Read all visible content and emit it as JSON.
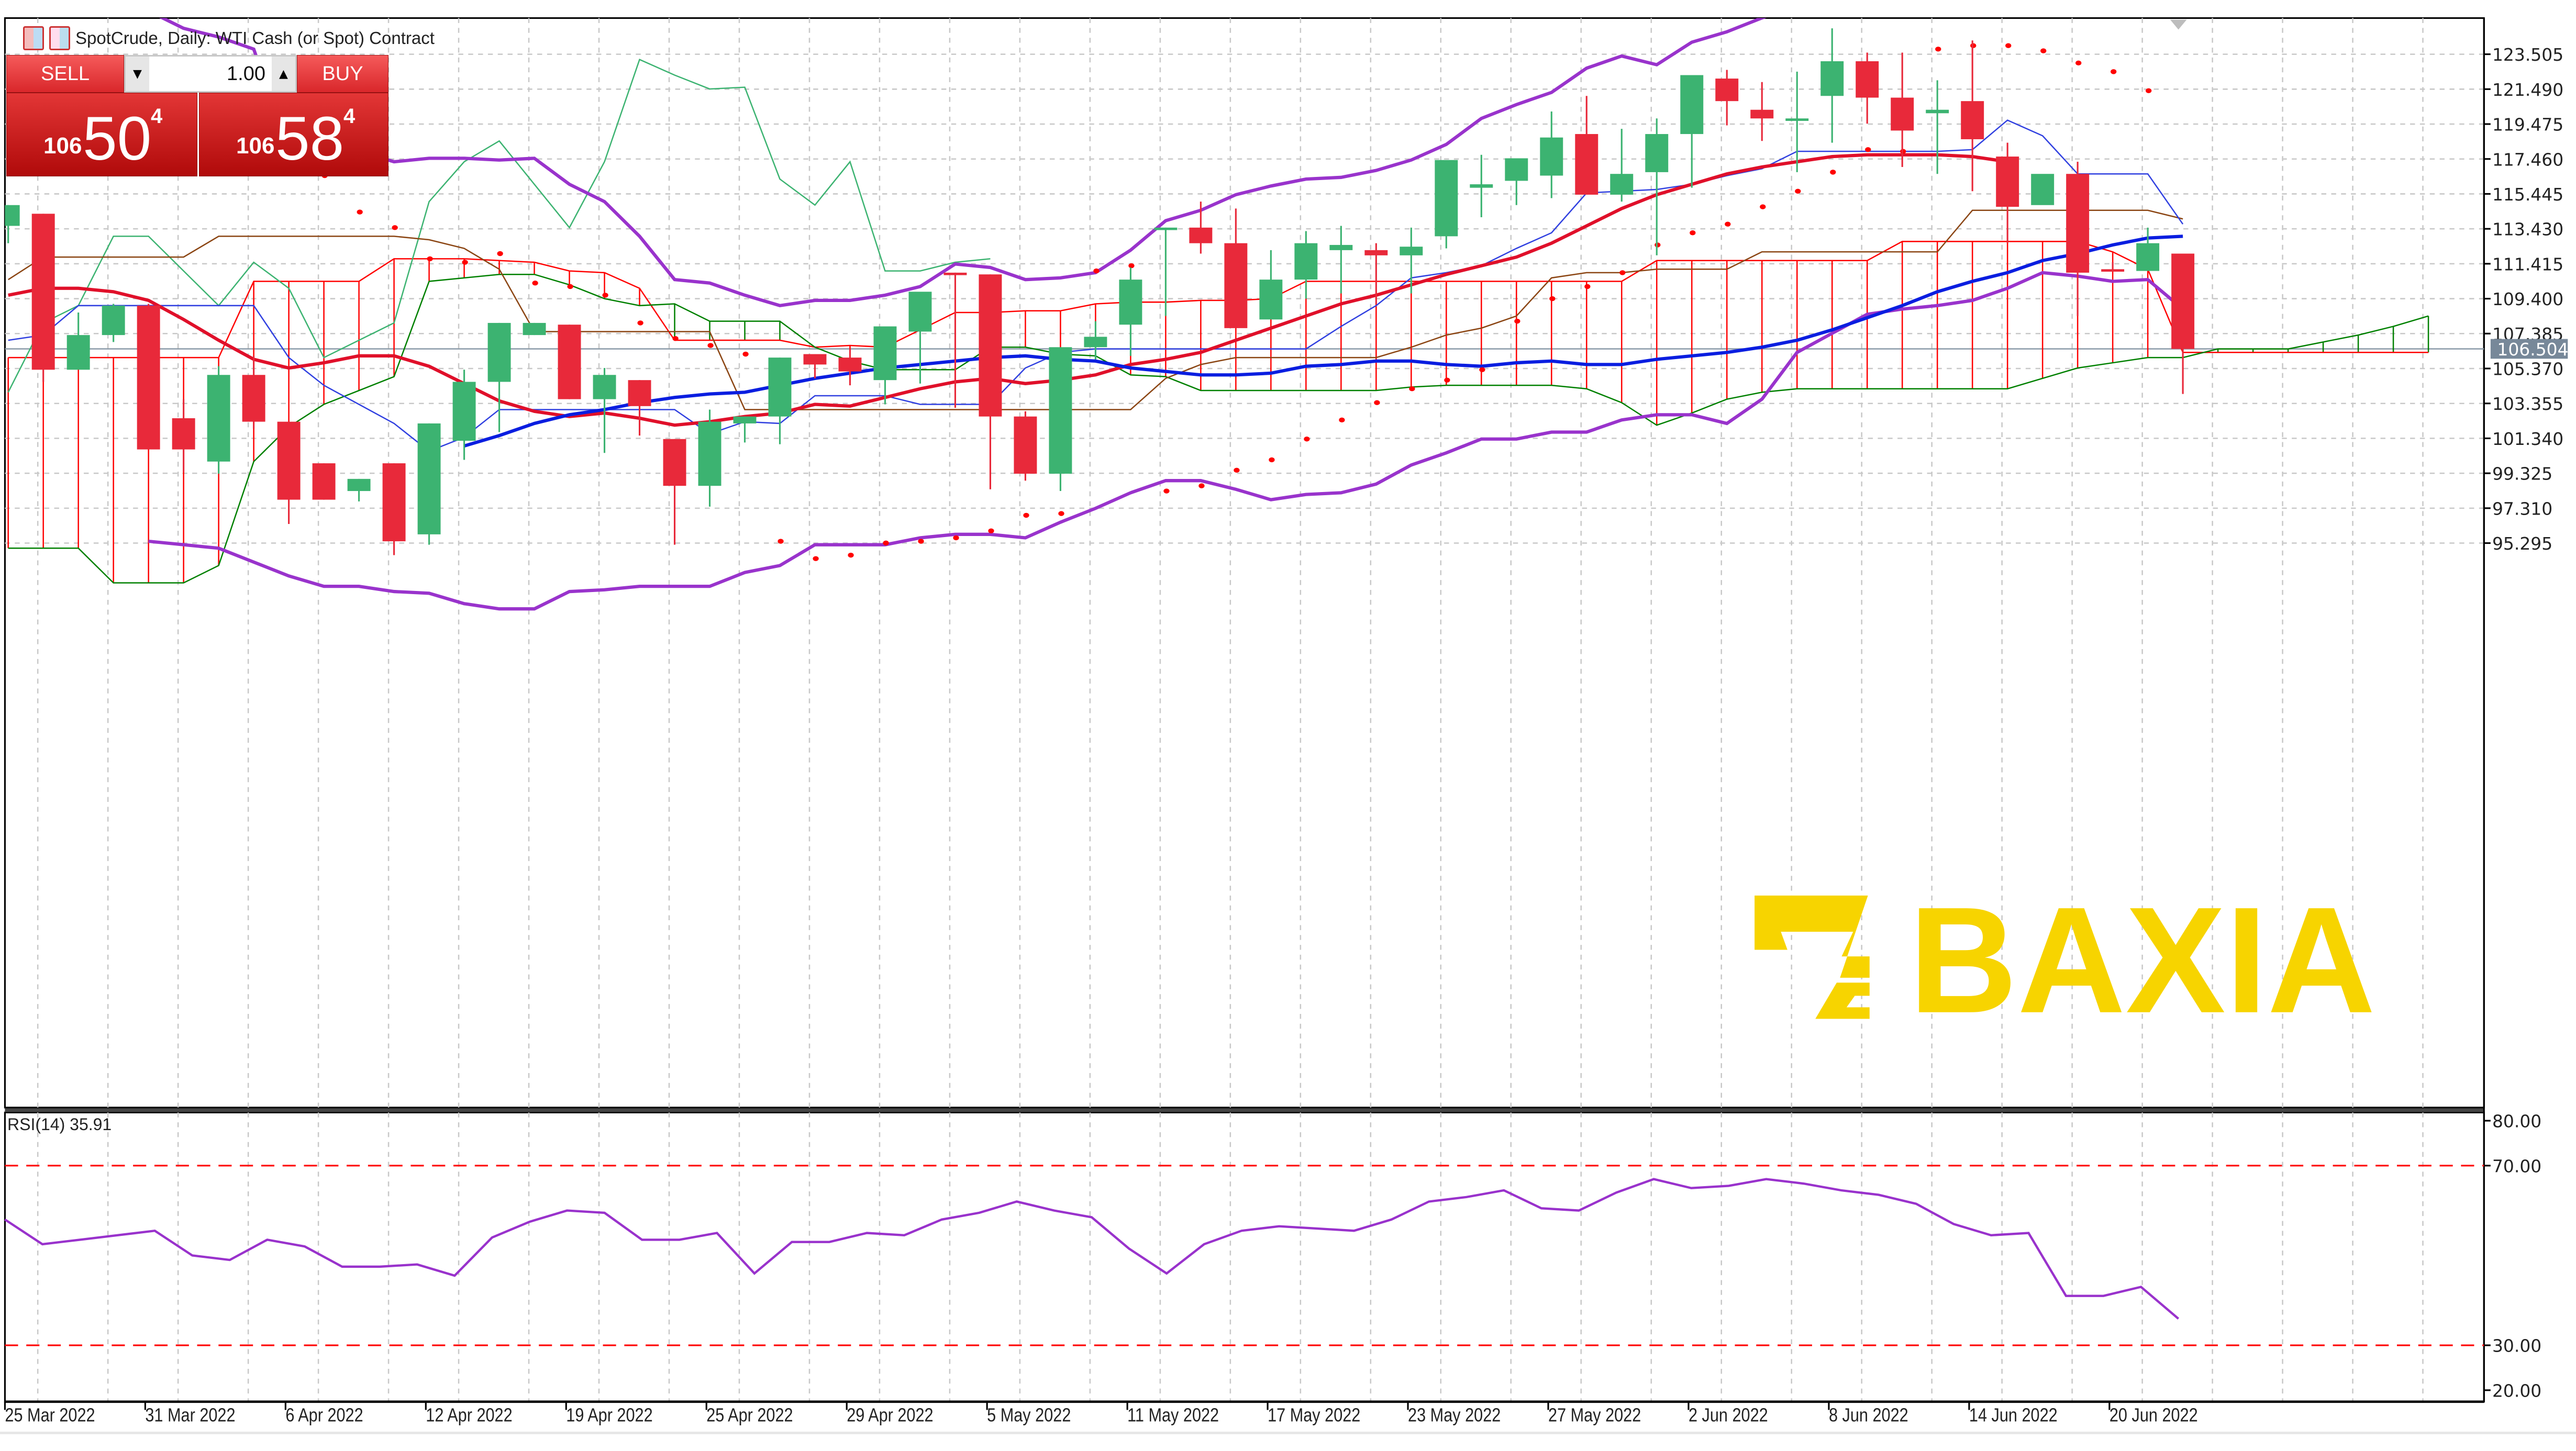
{
  "window": {
    "symbol": "SpotCrude",
    "timeframe": "Daily",
    "title": "SpotCrude, Daily:  WTI Cash (or Spot) Contract",
    "icons": [
      "market-depth-icon",
      "one-click-trading-icon"
    ]
  },
  "trade_panel": {
    "sell_label": "SELL",
    "buy_label": "BUY",
    "lot_value": "1.00",
    "lot_down_icon": "▼",
    "lot_up_icon": "▲",
    "sell_price": {
      "prefix": "106",
      "big": "50",
      "sup": "4",
      "full": "106.504"
    },
    "buy_price": {
      "prefix": "106",
      "big": "58",
      "sup": "4",
      "full": "106.584"
    }
  },
  "watermark": {
    "text": "BAXIA",
    "color": "#F7D400"
  },
  "colors": {
    "bull": "#3CB371",
    "bear": "#E8293A",
    "ma_red": "#E0102A",
    "ma_blue": "#0A1EE0",
    "bollinger": "#9933CC",
    "psar": "#FF0000",
    "ichimoku_cloud_up": "#008000",
    "ichimoku_cloud_down": "#FF0000",
    "tenkan": "#3040E0",
    "kijun": "#8B4513",
    "chikou": "#3CB371",
    "rsi_line": "#9932CC",
    "rsi_levels": "#FF0000",
    "current_price_bg": "#778899"
  },
  "chart_data": [
    {
      "type": "candlestick",
      "title": "SpotCrude, Daily:  WTI Cash (or Spot) Contract",
      "xlabel": "",
      "ylabel": "Price",
      "ylim": [
        93.3,
        126.1
      ],
      "grid": true,
      "current_price": 106.504,
      "y_ticks": [
        "123.505",
        "121.490",
        "119.475",
        "117.460",
        "115.445",
        "113.430",
        "111.415",
        "109.400",
        "107.385",
        "105.370",
        "103.355",
        "101.340",
        "99.325",
        "97.310",
        "95.295"
      ],
      "x_ticks": [
        "25 Mar 2022",
        "31 Mar 2022",
        "6 Apr 2022",
        "12 Apr 2022",
        "19 Apr 2022",
        "25 Apr 2022",
        "29 Apr 2022",
        "5 May 2022",
        "11 May 2022",
        "17 May 2022",
        "23 May 2022",
        "27 May 2022",
        "2 Jun 2022",
        "8 Jun 2022",
        "14 Jun 2022",
        "20 Jun 2022"
      ],
      "candles": [
        {
          "o": 113.6,
          "h": 114.8,
          "l": 112.6,
          "c": 114.8
        },
        {
          "o": 114.3,
          "h": 114.3,
          "l": 104.6,
          "c": 105.3
        },
        {
          "o": 105.3,
          "h": 108.6,
          "l": 105.3,
          "c": 107.3
        },
        {
          "o": 107.3,
          "h": 109.1,
          "l": 106.9,
          "c": 109.0
        },
        {
          "o": 109.0,
          "h": 109.1,
          "l": 100.7,
          "c": 100.7
        },
        {
          "o": 102.5,
          "h": 103.6,
          "l": 99.4,
          "c": 100.7
        },
        {
          "o": 100.0,
          "h": 105.5,
          "l": 99.3,
          "c": 105.0
        },
        {
          "o": 105.0,
          "h": 106.1,
          "l": 101.9,
          "c": 102.3
        },
        {
          "o": 102.3,
          "h": 102.3,
          "l": 96.4,
          "c": 97.8
        },
        {
          "o": 99.9,
          "h": 99.9,
          "l": 97.8,
          "c": 97.8
        },
        {
          "o": 98.3,
          "h": 99.0,
          "l": 97.7,
          "c": 99.0
        },
        {
          "o": 99.9,
          "h": 99.9,
          "l": 94.6,
          "c": 95.4
        },
        {
          "o": 95.8,
          "h": 102.2,
          "l": 95.2,
          "c": 102.2
        },
        {
          "o": 101.2,
          "h": 105.3,
          "l": 100.1,
          "c": 104.6
        },
        {
          "o": 104.6,
          "h": 108.0,
          "l": 101.7,
          "c": 108.0
        },
        {
          "o": 107.3,
          "h": 108.0,
          "l": 107.3,
          "c": 108.0
        },
        {
          "o": 107.9,
          "h": 107.9,
          "l": 103.6,
          "c": 103.6
        },
        {
          "o": 103.6,
          "h": 105.4,
          "l": 100.5,
          "c": 105.0
        },
        {
          "o": 104.7,
          "h": 104.7,
          "l": 101.5,
          "c": 103.2
        },
        {
          "o": 101.3,
          "h": 101.3,
          "l": 95.2,
          "c": 98.6
        },
        {
          "o": 98.6,
          "h": 103.0,
          "l": 97.4,
          "c": 102.3
        },
        {
          "o": 102.2,
          "h": 102.6,
          "l": 101.1,
          "c": 102.6
        },
        {
          "o": 102.6,
          "h": 106.0,
          "l": 101.0,
          "c": 106.0
        },
        {
          "o": 106.2,
          "h": 106.2,
          "l": 104.8,
          "c": 105.6
        },
        {
          "o": 106.0,
          "h": 106.5,
          "l": 104.4,
          "c": 105.2
        },
        {
          "o": 104.7,
          "h": 107.0,
          "l": 103.3,
          "c": 107.8
        },
        {
          "o": 107.5,
          "h": 109.1,
          "l": 104.5,
          "c": 109.8
        },
        {
          "o": 110.9,
          "h": 110.9,
          "l": 103.1,
          "c": 110.8
        },
        {
          "o": 110.8,
          "h": 110.8,
          "l": 98.4,
          "c": 102.6
        },
        {
          "o": 102.6,
          "h": 102.9,
          "l": 98.9,
          "c": 99.3
        },
        {
          "o": 99.3,
          "h": 106.6,
          "l": 98.3,
          "c": 106.6
        },
        {
          "o": 106.6,
          "h": 108.1,
          "l": 105.9,
          "c": 107.2
        },
        {
          "o": 107.9,
          "h": 111.2,
          "l": 106.1,
          "c": 110.5
        },
        {
          "o": 113.5,
          "h": 113.5,
          "l": 108.4,
          "c": 113.5
        },
        {
          "o": 113.5,
          "h": 115.0,
          "l": 112.0,
          "c": 112.6
        },
        {
          "o": 112.6,
          "h": 114.6,
          "l": 107.7,
          "c": 107.7
        },
        {
          "o": 108.2,
          "h": 112.2,
          "l": 108.2,
          "c": 110.5
        },
        {
          "o": 110.5,
          "h": 113.3,
          "l": 109.4,
          "c": 112.6
        },
        {
          "o": 112.2,
          "h": 113.6,
          "l": 109.7,
          "c": 112.5
        },
        {
          "o": 112.2,
          "h": 112.6,
          "l": 109.1,
          "c": 111.9
        },
        {
          "o": 111.9,
          "h": 113.5,
          "l": 109.7,
          "c": 112.4
        },
        {
          "o": 113.0,
          "h": 116.0,
          "l": 112.3,
          "c": 117.4
        },
        {
          "o": 115.8,
          "h": 117.7,
          "l": 114.1,
          "c": 116.0
        },
        {
          "o": 116.2,
          "h": 117.2,
          "l": 114.8,
          "c": 117.5
        },
        {
          "o": 116.5,
          "h": 120.2,
          "l": 115.2,
          "c": 118.7
        },
        {
          "o": 118.9,
          "h": 121.1,
          "l": 115.4,
          "c": 115.4
        },
        {
          "o": 115.4,
          "h": 119.2,
          "l": 115.0,
          "c": 116.6
        },
        {
          "o": 116.7,
          "h": 119.8,
          "l": 111.9,
          "c": 118.9
        },
        {
          "o": 118.9,
          "h": 122.3,
          "l": 115.8,
          "c": 122.3
        },
        {
          "o": 122.1,
          "h": 122.6,
          "l": 119.4,
          "c": 120.8
        },
        {
          "o": 120.3,
          "h": 121.9,
          "l": 118.5,
          "c": 119.8
        },
        {
          "o": 119.8,
          "h": 122.5,
          "l": 116.7,
          "c": 119.8
        },
        {
          "o": 121.1,
          "h": 125.0,
          "l": 118.4,
          "c": 123.1
        },
        {
          "o": 123.1,
          "h": 123.6,
          "l": 119.5,
          "c": 121.0
        },
        {
          "o": 121.0,
          "h": 123.6,
          "l": 117.0,
          "c": 119.1
        },
        {
          "o": 120.1,
          "h": 122.0,
          "l": 116.6,
          "c": 120.3
        },
        {
          "o": 120.8,
          "h": 124.3,
          "l": 115.6,
          "c": 118.6
        },
        {
          "o": 117.6,
          "h": 118.4,
          "l": 112.6,
          "c": 114.7
        },
        {
          "o": 114.8,
          "h": 116.5,
          "l": 115.0,
          "c": 116.6
        },
        {
          "o": 116.6,
          "h": 117.3,
          "l": 108.4,
          "c": 110.9
        },
        {
          "o": 111.1,
          "h": 111.5,
          "l": 111.0,
          "c": 111.0
        },
        {
          "o": 111.0,
          "h": 113.5,
          "l": 111.0,
          "c": 112.6
        },
        {
          "o": 112.0,
          "h": 112.0,
          "l": 103.9,
          "c": 106.5
        }
      ],
      "indicators": {
        "moving_average_red": "thick red MA",
        "moving_average_blue": "thick blue MA",
        "bollinger_bands": "purple upper/lower bands",
        "parabolic_sar": "red dots",
        "ichimoku": "tenkan (blue), kijun (brown), chikou (green), cloud (green/red hatched)"
      }
    },
    {
      "type": "line",
      "title": "RSI(14) 35.91",
      "ylim": [
        20,
        80
      ],
      "y_ticks": [
        "80.00",
        "70.00",
        "30.00",
        "20.00"
      ],
      "levels": [
        70,
        30
      ],
      "series": [
        {
          "name": "RSI(14)",
          "values": [
            58.0,
            52.5,
            53.5,
            54.5,
            55.5,
            50.0,
            49.0,
            53.5,
            52.0,
            47.5,
            47.5,
            48.0,
            45.5,
            54.0,
            57.5,
            60.0,
            59.5,
            53.5,
            53.5,
            55.0,
            46.0,
            53.0,
            53.0,
            55.0,
            54.5,
            58.0,
            59.5,
            62.0,
            60.0,
            58.5,
            51.5,
            46.0,
            52.5,
            55.5,
            56.5,
            56.0,
            55.5,
            58.0,
            62.0,
            63.0,
            64.5,
            60.5,
            60.0,
            64.0,
            67.0,
            65.0,
            65.5,
            67.0,
            66.0,
            64.5,
            63.5,
            61.5,
            57.0,
            54.5,
            55.0,
            41.0,
            41.0,
            43.0,
            35.91
          ]
        }
      ],
      "current": 35.91
    }
  ]
}
